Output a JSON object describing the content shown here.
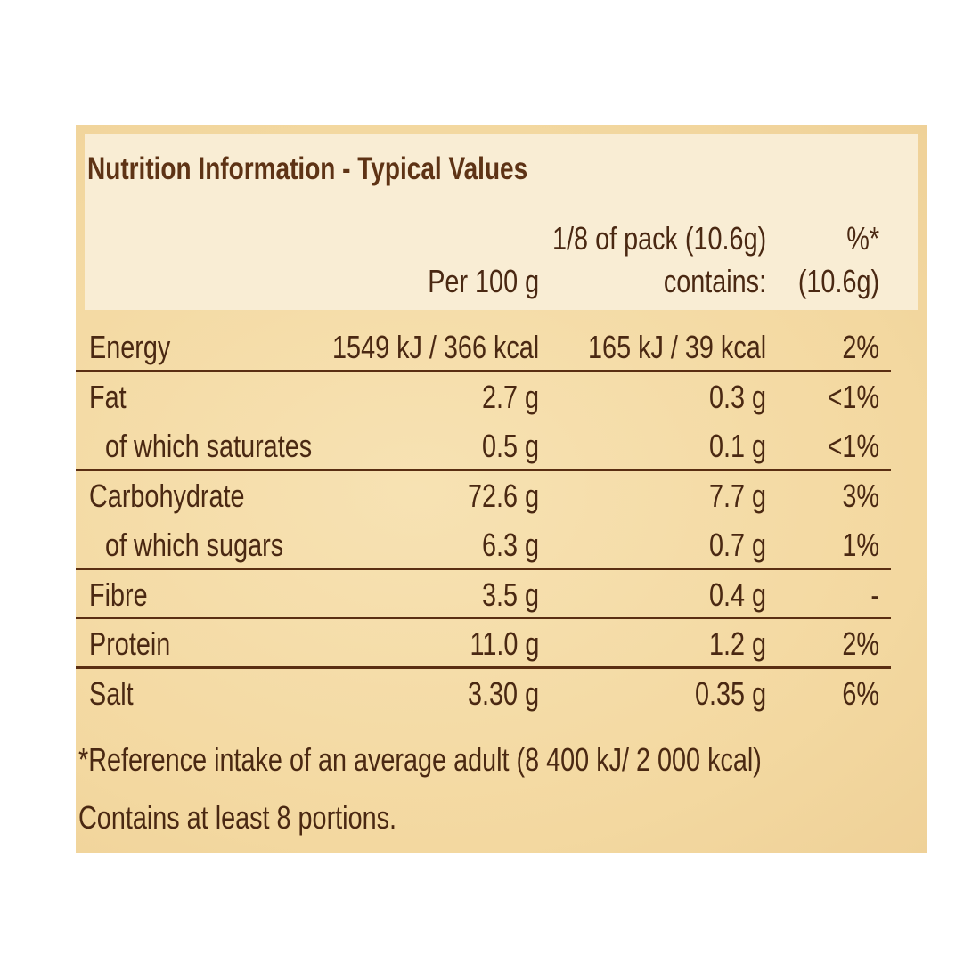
{
  "title": "Nutrition Information - Typical Values",
  "columns": {
    "per100": [
      "Per 100 g"
    ],
    "portion": [
      "1/8 of pack (10.6g)",
      "contains:"
    ],
    "percent": [
      "%*",
      "(10.6g)"
    ]
  },
  "groups": [
    [
      [
        "Energy",
        "1549 kJ / 366 kcal",
        "165 kJ / 39 kcal",
        "2%"
      ]
    ],
    [
      [
        "Fat",
        "2.7 g",
        "0.3 g",
        "<1%"
      ],
      [
        "of which saturates",
        "0.5 g",
        "0.1 g",
        "<1%"
      ]
    ],
    [
      [
        "Carbohydrate",
        "72.6 g",
        "7.7 g",
        "3%"
      ],
      [
        "of which sugars",
        "6.3 g",
        "0.7 g",
        "1%"
      ]
    ],
    [
      [
        "Fibre",
        "3.5 g",
        "0.4 g",
        "-"
      ]
    ],
    [
      [
        "Protein",
        "11.0 g",
        "1.2 g",
        "2%"
      ]
    ],
    [
      [
        "Salt",
        "3.30 g",
        "0.35 g",
        "6%"
      ]
    ]
  ],
  "footnotes": [
    "*Reference intake of an average adult (8 400 kJ/ 2 000 kcal)",
    "Contains at least 8 portions."
  ]
}
